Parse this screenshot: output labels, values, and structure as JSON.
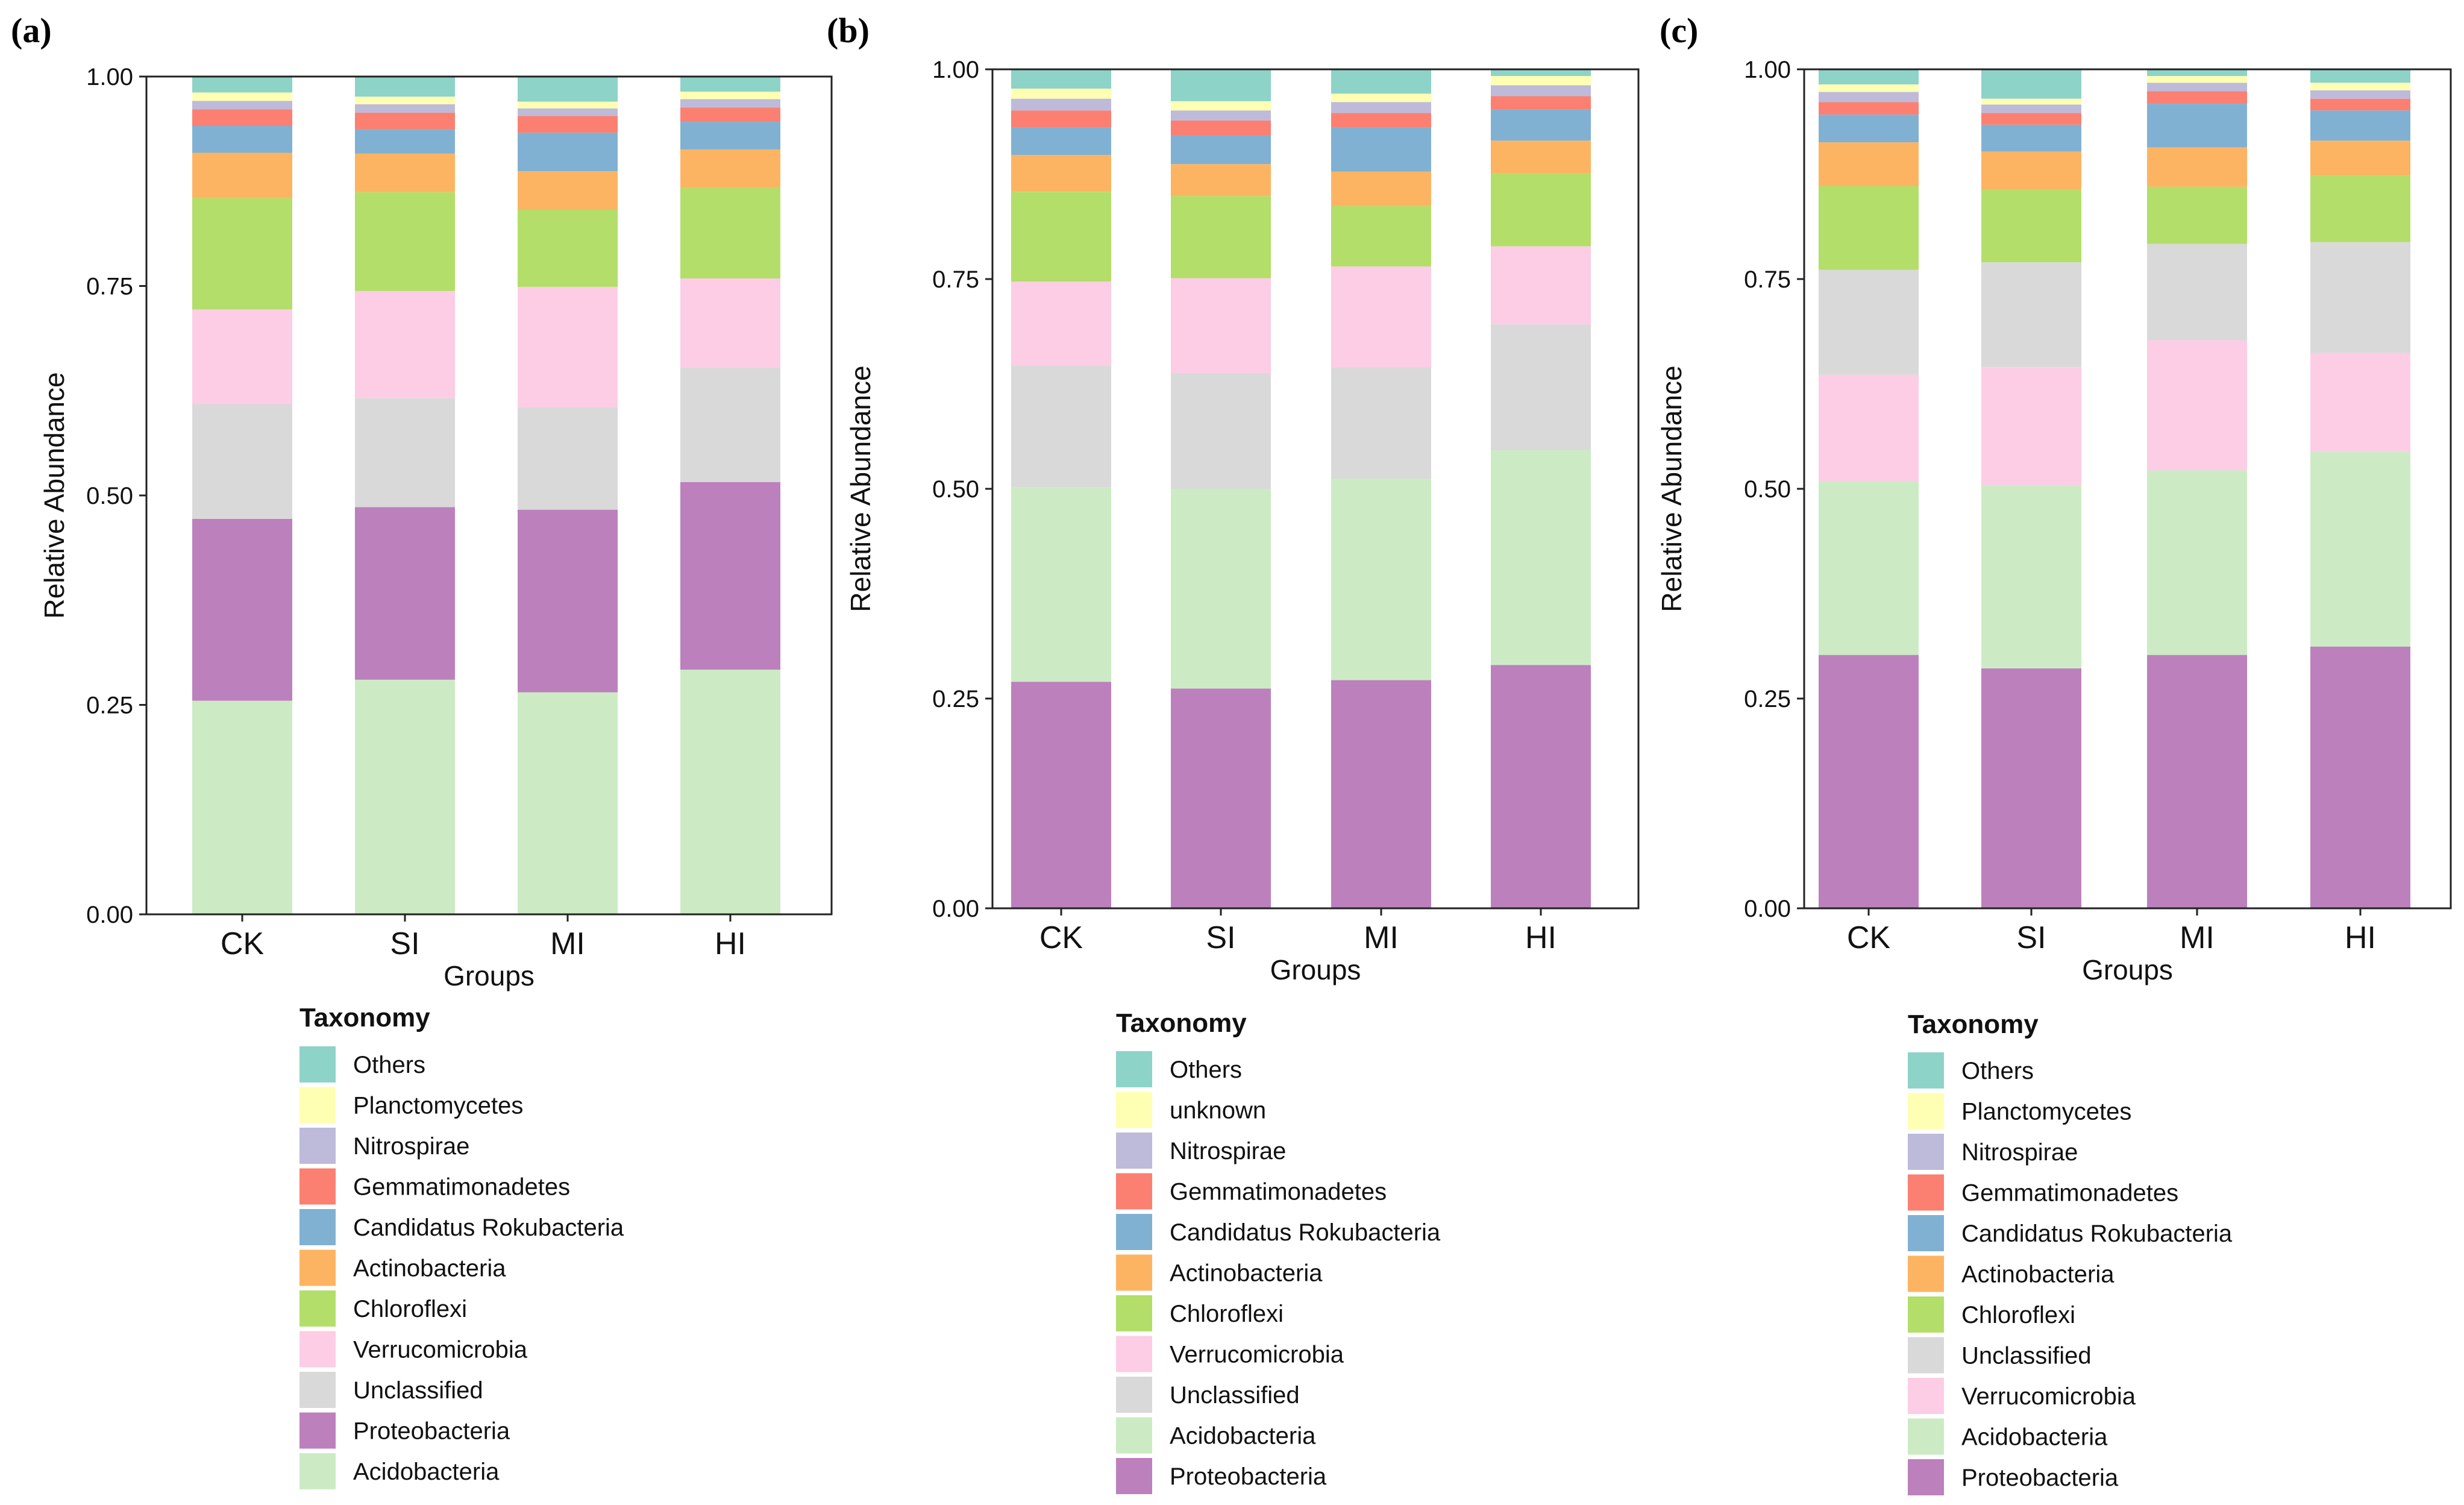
{
  "colors": {
    "Others": "#8dd3c7",
    "Planctomycetes": "#ffffb3",
    "unknown": "#ffffb3",
    "Nitrospirae": "#bebada",
    "Gemmatimonadetes": "#fb8072",
    "Candidatus Rokubacteria": "#80b1d3",
    "Actinobacteria": "#fdb462",
    "Chloroflexi": "#b3de69",
    "Verrucomicrobia": "#fccde5",
    "Unclassified": "#d9d9d9",
    "Proteobacteria": "#bc80bd",
    "Acidobacteria": "#ccebc5"
  },
  "chart_data": [
    {
      "type": "bar",
      "stacked": true,
      "panel_label": "(a)",
      "title": "",
      "xlabel": "Groups",
      "ylabel": "Relative Abundance",
      "ylim": [
        0,
        1
      ],
      "yticks": [
        "0.00",
        "0.25",
        "0.50",
        "0.75",
        "1.00"
      ],
      "categories": [
        "CK",
        "SI",
        "MI",
        "HI"
      ],
      "legend_title": "Taxonomy",
      "legend": [
        "Others",
        "Planctomycetes",
        "Nitrospirae",
        "Gemmatimonadetes",
        "Candidatus Rokubacteria",
        "Actinobacteria",
        "Chloroflexi",
        "Verrucomicrobia",
        "Unclassified",
        "Proteobacteria",
        "Acidobacteria"
      ],
      "series": [
        {
          "name": "Acidobacteria",
          "values": [
            0.255,
            0.28,
            0.265,
            0.292
          ]
        },
        {
          "name": "Proteobacteria",
          "values": [
            0.217,
            0.206,
            0.218,
            0.224
          ]
        },
        {
          "name": "Unclassified",
          "values": [
            0.137,
            0.13,
            0.122,
            0.137
          ]
        },
        {
          "name": "Verrucomicrobia",
          "values": [
            0.113,
            0.128,
            0.144,
            0.106
          ]
        },
        {
          "name": "Chloroflexi",
          "values": [
            0.133,
            0.118,
            0.092,
            0.108
          ]
        },
        {
          "name": "Actinobacteria",
          "values": [
            0.054,
            0.046,
            0.046,
            0.046
          ]
        },
        {
          "name": "Candidatus Rokubacteria",
          "values": [
            0.032,
            0.029,
            0.046,
            0.033
          ]
        },
        {
          "name": "Gemmatimonadetes",
          "values": [
            0.02,
            0.02,
            0.02,
            0.017
          ]
        },
        {
          "name": "Nitrospirae",
          "values": [
            0.01,
            0.01,
            0.009,
            0.01
          ]
        },
        {
          "name": "Planctomycetes",
          "values": [
            0.01,
            0.009,
            0.008,
            0.009
          ]
        },
        {
          "name": "Others",
          "values": [
            0.019,
            0.024,
            0.03,
            0.018
          ]
        }
      ]
    },
    {
      "type": "bar",
      "stacked": true,
      "panel_label": "(b)",
      "title": "",
      "xlabel": "Groups",
      "ylabel": "Relative Abundance",
      "ylim": [
        0,
        1
      ],
      "yticks": [
        "0.00",
        "0.25",
        "0.50",
        "0.75",
        "1.00"
      ],
      "categories": [
        "CK",
        "SI",
        "MI",
        "HI"
      ],
      "legend_title": "Taxonomy",
      "legend": [
        "Others",
        "unknown",
        "Nitrospirae",
        "Gemmatimonadetes",
        "Candidatus Rokubacteria",
        "Actinobacteria",
        "Chloroflexi",
        "Verrucomicrobia",
        "Unclassified",
        "Acidobacteria",
        "Proteobacteria"
      ],
      "series": [
        {
          "name": "Proteobacteria",
          "values": [
            0.27,
            0.262,
            0.272,
            0.29
          ]
        },
        {
          "name": "Acidobacteria",
          "values": [
            0.232,
            0.238,
            0.24,
            0.256
          ]
        },
        {
          "name": "Unclassified",
          "values": [
            0.145,
            0.138,
            0.133,
            0.15
          ]
        },
        {
          "name": "Verrucomicrobia",
          "values": [
            0.1,
            0.113,
            0.12,
            0.093
          ]
        },
        {
          "name": "Chloroflexi",
          "values": [
            0.107,
            0.098,
            0.072,
            0.087
          ]
        },
        {
          "name": "Actinobacteria",
          "values": [
            0.044,
            0.038,
            0.041,
            0.039
          ]
        },
        {
          "name": "Candidatus Rokubacteria",
          "values": [
            0.033,
            0.034,
            0.053,
            0.037
          ]
        },
        {
          "name": "Gemmatimonadetes",
          "values": [
            0.02,
            0.018,
            0.017,
            0.016
          ]
        },
        {
          "name": "Nitrospirae",
          "values": [
            0.014,
            0.012,
            0.013,
            0.013
          ]
        },
        {
          "name": "unknown",
          "values": [
            0.012,
            0.011,
            0.01,
            0.011
          ]
        },
        {
          "name": "Others",
          "values": [
            0.023,
            0.038,
            0.029,
            0.008
          ]
        }
      ]
    },
    {
      "type": "bar",
      "stacked": true,
      "panel_label": "(c)",
      "title": "",
      "xlabel": "Groups",
      "ylabel": "Relative Abundance",
      "ylim": [
        0,
        1
      ],
      "yticks": [
        "0.00",
        "0.25",
        "0.50",
        "0.75",
        "1.00"
      ],
      "categories": [
        "CK",
        "SI",
        "MI",
        "HI"
      ],
      "legend_title": "Taxonomy",
      "legend": [
        "Others",
        "Planctomycetes",
        "Nitrospirae",
        "Gemmatimonadetes",
        "Candidatus Rokubacteria",
        "Actinobacteria",
        "Chloroflexi",
        "Unclassified",
        "Verrucomicrobia",
        "Acidobacteria",
        "Proteobacteria"
      ],
      "series": [
        {
          "name": "Proteobacteria",
          "values": [
            0.302,
            0.286,
            0.302,
            0.312
          ]
        },
        {
          "name": "Acidobacteria",
          "values": [
            0.207,
            0.218,
            0.22,
            0.232
          ]
        },
        {
          "name": "Verrucomicrobia",
          "values": [
            0.127,
            0.141,
            0.155,
            0.118
          ]
        },
        {
          "name": "Unclassified",
          "values": [
            0.125,
            0.125,
            0.115,
            0.132
          ]
        },
        {
          "name": "Chloroflexi",
          "values": [
            0.1,
            0.087,
            0.068,
            0.079
          ]
        },
        {
          "name": "Actinobacteria",
          "values": [
            0.052,
            0.045,
            0.047,
            0.042
          ]
        },
        {
          "name": "Candidatus Rokubacteria",
          "values": [
            0.033,
            0.032,
            0.052,
            0.036
          ]
        },
        {
          "name": "Gemmatimonadetes",
          "values": [
            0.015,
            0.014,
            0.015,
            0.014
          ]
        },
        {
          "name": "Nitrospirae",
          "values": [
            0.012,
            0.01,
            0.01,
            0.01
          ]
        },
        {
          "name": "Planctomycetes",
          "values": [
            0.009,
            0.007,
            0.008,
            0.009
          ]
        },
        {
          "name": "Others",
          "values": [
            0.018,
            0.035,
            0.008,
            0.016
          ]
        }
      ]
    }
  ]
}
